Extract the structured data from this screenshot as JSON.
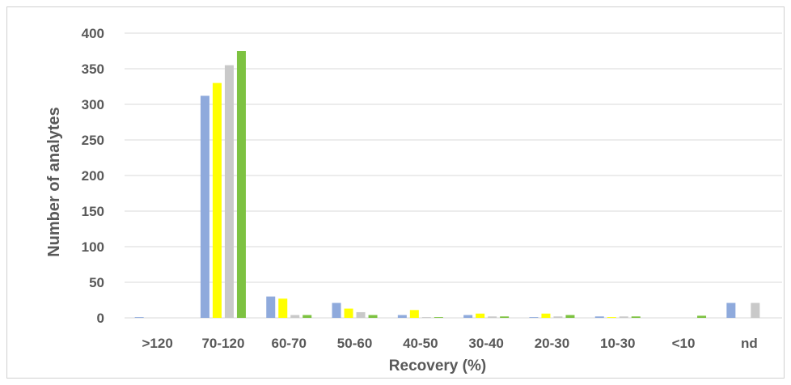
{
  "chart_data": {
    "type": "bar",
    "title": "",
    "xlabel": "Recovery (%)",
    "ylabel": "Number of analytes",
    "ylim": [
      0,
      400
    ],
    "yticks": [
      0,
      50,
      100,
      150,
      200,
      250,
      300,
      350,
      400
    ],
    "grid": true,
    "legend": "none",
    "categories": [
      ">120",
      "70-120",
      "60-70",
      "50-60",
      "40-50",
      "30-40",
      "20-30",
      "10-30",
      "<10",
      "nd"
    ],
    "series": [
      {
        "color": "#8faadc",
        "values": [
          1,
          312,
          30,
          21,
          4,
          4,
          1,
          2,
          0,
          21
        ]
      },
      {
        "color": "#ffff00",
        "values": [
          0,
          330,
          27,
          13,
          11,
          6,
          6,
          1,
          0,
          0
        ]
      },
      {
        "color": "#c9c9c9",
        "values": [
          0,
          355,
          4,
          8,
          1,
          2,
          2,
          2,
          0,
          21
        ]
      },
      {
        "color": "#7dc241",
        "values": [
          0,
          375,
          4,
          4,
          1,
          2,
          4,
          2,
          3,
          0
        ]
      }
    ]
  }
}
